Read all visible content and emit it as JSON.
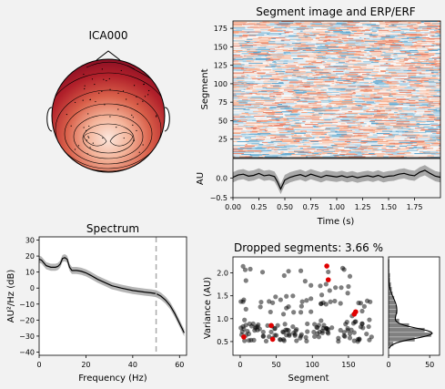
{
  "topomap": {
    "title": "ICA000"
  },
  "segment_image": {
    "title": "Segment image and ERP/ERF",
    "ylabel": "Segment",
    "yticks": [
      "25",
      "50",
      "75",
      "100",
      "125",
      "150",
      "175"
    ],
    "ytick_values": [
      25,
      50,
      75,
      100,
      125,
      150,
      175
    ],
    "ylim": [
      0,
      185
    ]
  },
  "erp": {
    "ylabel": "AU",
    "xlabel": "Time (s)",
    "xticks": [
      "0.00",
      "0.25",
      "0.50",
      "0.75",
      "1.00",
      "1.25",
      "1.50",
      "1.75"
    ],
    "xtick_values": [
      0.0,
      0.25,
      0.5,
      0.75,
      1.0,
      1.25,
      1.5,
      1.75
    ],
    "yticks": [
      "0.0",
      "−0.5"
    ],
    "ytick_values": [
      0.0,
      -0.5
    ],
    "xlim": [
      0,
      2.0
    ],
    "ylim": [
      -0.5,
      0.5
    ]
  },
  "spectrum": {
    "title": "Spectrum",
    "ylabel": "AU²/Hz (dB)",
    "xlabel": "Frequency (Hz)",
    "xticks": [
      "0",
      "20",
      "40",
      "60"
    ],
    "xtick_values": [
      0,
      20,
      40,
      60
    ],
    "yticks": [
      "30",
      "20",
      "10",
      "0",
      "−10",
      "−20",
      "−30",
      "−40"
    ],
    "ytick_values": [
      30,
      20,
      10,
      0,
      -10,
      -20,
      -30,
      -40
    ],
    "xlim": [
      0,
      63
    ],
    "ylim": [
      -42,
      32
    ],
    "cutoff_hz": 50
  },
  "dropped": {
    "title": "Dropped segments: 3.66 %",
    "ylabel": "Variance (AU)",
    "xlabel": "Segment",
    "xticks": [
      "0",
      "50",
      "100",
      "150"
    ],
    "xtick_values": [
      0,
      50,
      100,
      150
    ],
    "yticks": [
      "0.5",
      "1.0",
      "1.5",
      "2.0"
    ],
    "ytick_values": [
      0.5,
      1.0,
      1.5,
      2.0
    ],
    "xlim": [
      -10,
      198
    ],
    "ylim": [
      0.2,
      2.35
    ]
  },
  "histogram": {
    "xticks": [
      "0",
      "50"
    ],
    "xtick_values": [
      0,
      50
    ],
    "xlim": [
      0,
      62
    ]
  },
  "chart_data": [
    {
      "type": "heatmap",
      "title": "Segment image and ERP/ERF",
      "ylabel": "Segment",
      "n_segments": 183,
      "x_range_s": [
        0,
        2.0
      ],
      "colormap": "RdBu_r"
    },
    {
      "type": "line",
      "ylabel": "AU",
      "xlabel": "Time (s)",
      "x": [
        0,
        0.05,
        0.1,
        0.15,
        0.2,
        0.25,
        0.3,
        0.35,
        0.4,
        0.43,
        0.46,
        0.5,
        0.55,
        0.6,
        0.65,
        0.7,
        0.75,
        0.8,
        0.85,
        0.9,
        0.95,
        1.0,
        1.05,
        1.1,
        1.15,
        1.2,
        1.25,
        1.3,
        1.35,
        1.4,
        1.45,
        1.5,
        1.55,
        1.6,
        1.65,
        1.7,
        1.75,
        1.8,
        1.85,
        1.9,
        1.95,
        2.0
      ],
      "values": [
        0.02,
        0.08,
        0.1,
        0.05,
        0.07,
        0.12,
        0.06,
        0.08,
        0.04,
        -0.1,
        -0.28,
        -0.05,
        0.02,
        0.06,
        0.09,
        0.04,
        0.1,
        0.06,
        0.02,
        0.07,
        0.05,
        0.03,
        0.06,
        0.02,
        0.05,
        0.01,
        0.04,
        0.06,
        0.03,
        0.07,
        0.02,
        0.05,
        0.06,
        0.1,
        0.12,
        0.08,
        0.06,
        0.15,
        0.2,
        0.12,
        0.05,
        0.02
      ],
      "band": 0.13
    },
    {
      "type": "line",
      "title": "Spectrum",
      "xlabel": "Frequency (Hz)",
      "ylabel": "AU²/Hz (dB)",
      "x": [
        0,
        1,
        3,
        5,
        7,
        8,
        9,
        10,
        11,
        12,
        13,
        14,
        16,
        18,
        20,
        22,
        25,
        28,
        31,
        35,
        40,
        45,
        48,
        50,
        52,
        54,
        56,
        58,
        60,
        62
      ],
      "values": [
        18,
        17.5,
        14,
        13,
        13,
        13.5,
        15,
        18.5,
        19,
        18,
        13,
        11,
        11,
        10.5,
        9.5,
        8,
        5.5,
        3.5,
        1.5,
        0,
        -1.5,
        -2.5,
        -3,
        -3.5,
        -5,
        -7.5,
        -11,
        -16,
        -22,
        -28
      ],
      "band": 2.2,
      "vline_x": 50
    },
    {
      "type": "scatter",
      "title": "Dropped segments: 3.66 %",
      "xlabel": "Segment",
      "ylabel": "Variance (AU)",
      "dropped_points": [
        [
          5,
          0.6
        ],
        [
          43,
          0.85
        ],
        [
          45,
          0.55
        ],
        [
          120,
          2.15
        ],
        [
          122,
          1.85
        ],
        [
          158,
          1.1
        ],
        [
          160,
          1.15
        ]
      ]
    },
    {
      "type": "bar",
      "orientation": "horizontal",
      "x_label_ticks": [
        0,
        50
      ],
      "bin_edges": [
        0.4,
        0.5,
        0.6,
        0.7,
        0.8,
        0.9,
        1.0,
        1.1,
        1.2,
        1.3,
        1.4,
        1.5,
        1.6,
        1.7,
        1.8,
        1.9,
        2.0,
        2.1,
        2.2,
        2.3
      ],
      "counts": [
        6,
        32,
        52,
        44,
        25,
        13,
        9,
        11,
        10,
        8,
        7,
        5,
        4,
        3,
        2,
        2,
        1,
        1,
        1
      ]
    }
  ]
}
